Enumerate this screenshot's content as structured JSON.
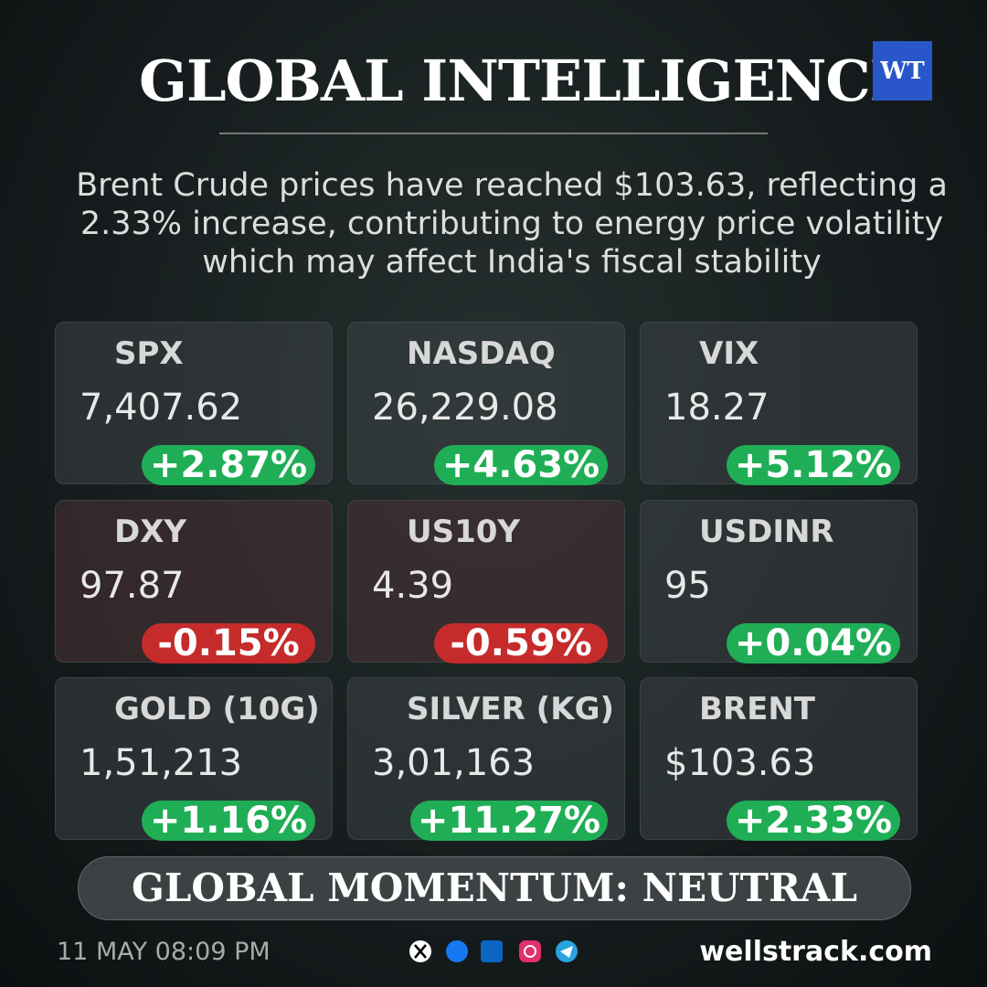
{
  "header": {
    "title": "GLOBAL INTELLIGENCE",
    "logo": "WT",
    "summary": "Brent Crude prices have reached $103.63, reflecting a 2.33% increase, contributing to energy price volatility which may affect India's fiscal stability"
  },
  "cards": [
    {
      "name": "SPX",
      "value": "7,407.62",
      "change": "+2.87%",
      "color": "#1fae55"
    },
    {
      "name": "NASDAQ",
      "value": "26,229.08",
      "change": "+4.63%",
      "color": "#1fae55"
    },
    {
      "name": "VIX",
      "value": "18.27",
      "change": "+5.12%",
      "color": "#1fae55"
    },
    {
      "name": "DXY",
      "value": "97.87",
      "change": "-0.15%",
      "color": "#c62b2b"
    },
    {
      "name": "US10Y",
      "value": "4.39",
      "change": "-0.59%",
      "color": "#c62b2b"
    },
    {
      "name": "USDINR",
      "value": "95",
      "change": "+0.04%",
      "color": "#1fae55"
    },
    {
      "name": "GOLD (10G)",
      "value": "1,51,213",
      "change": "+1.16%",
      "color": "#1fae55"
    },
    {
      "name": "SILVER (KG)",
      "value": "3,01,163",
      "change": "+11.27%",
      "color": "#1fae55"
    },
    {
      "name": "BRENT",
      "value": "$103.63",
      "change": "+2.33%",
      "color": "#1fae55"
    }
  ],
  "momentum": "GLOBAL MOMENTUM: NEUTRAL",
  "footer": {
    "timestamp": "11 MAY 08:09 PM",
    "website": "wellstrack.com"
  }
}
